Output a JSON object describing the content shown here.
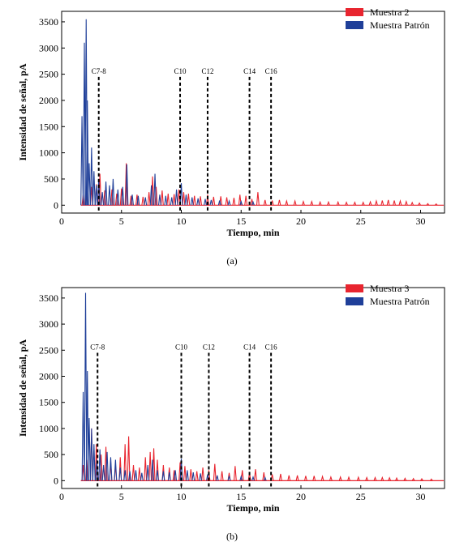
{
  "colors": {
    "sample": "#e8252f",
    "pattern": "#1f3f99",
    "axis": "#000000",
    "marker": "#000000"
  },
  "chart_data": [
    {
      "type": "line",
      "caption": "(a)",
      "xlabel": "Tiempo, min",
      "ylabel": "Intensidad de señal, pA",
      "xlim": [
        0,
        32
      ],
      "ylim": [
        -150,
        3700
      ],
      "xticks": [
        0,
        5,
        10,
        15,
        20,
        25,
        30
      ],
      "yticks": [
        0,
        500,
        1000,
        1500,
        2000,
        2500,
        3000,
        3500
      ],
      "legend_position": "top-right",
      "series": [
        {
          "name": "Muestra 2",
          "color": "#e8252f",
          "x": [
            1.8,
            2.1,
            2.5,
            2.9,
            3.2,
            3.6,
            4.2,
            4.6,
            5.0,
            5.4,
            5.8,
            6.3,
            6.8,
            7.3,
            7.6,
            7.9,
            8.4,
            8.9,
            9.4,
            9.8,
            10.2,
            10.6,
            11.1,
            11.6,
            12.2,
            12.7,
            13.3,
            13.8,
            14.4,
            14.9,
            15.4,
            15.9,
            16.4,
            17.0,
            17.6,
            18.2,
            18.8,
            19.5,
            20.2,
            20.9,
            21.6,
            22.3,
            23.1,
            23.8,
            24.5,
            25.2,
            25.8,
            26.3,
            26.8,
            27.3,
            27.8,
            28.3,
            28.8,
            29.3,
            29.9,
            30.6,
            31.3
          ],
          "y": [
            200,
            180,
            350,
            400,
            600,
            280,
            300,
            220,
            320,
            800,
            180,
            200,
            160,
            250,
            550,
            350,
            280,
            220,
            210,
            300,
            250,
            220,
            180,
            170,
            200,
            160,
            170,
            150,
            140,
            200,
            180,
            120,
            250,
            100,
            90,
            100,
            80,
            80,
            70,
            70,
            60,
            60,
            60,
            55,
            55,
            55,
            65,
            80,
            90,
            100,
            90,
            80,
            70,
            50,
            40,
            30,
            25
          ]
        },
        {
          "name": "Muestra Patrón",
          "color": "#1f3f99",
          "x": [
            1.7,
            1.9,
            2.05,
            2.15,
            2.3,
            2.5,
            2.7,
            2.9,
            3.1,
            3.4,
            3.7,
            4.0,
            4.3,
            4.7,
            5.1,
            5.45,
            5.9,
            6.4,
            7.0,
            7.5,
            7.8,
            8.2,
            8.7,
            9.2,
            9.6,
            10.0,
            10.4,
            10.9,
            11.4,
            12.0,
            12.5,
            13.2,
            14.0,
            15.0,
            16.0
          ],
          "y": [
            1700,
            3100,
            3550,
            2000,
            800,
            1100,
            650,
            380,
            500,
            250,
            450,
            380,
            500,
            300,
            350,
            780,
            200,
            180,
            150,
            380,
            600,
            200,
            180,
            150,
            300,
            420,
            200,
            150,
            130,
            120,
            100,
            90,
            80,
            70,
            60
          ]
        }
      ],
      "markers": [
        {
          "label": "C7-8",
          "x": 3.1
        },
        {
          "label": "C10",
          "x": 9.9
        },
        {
          "label": "C12",
          "x": 12.2
        },
        {
          "label": "C14",
          "x": 15.7
        },
        {
          "label": "C16",
          "x": 17.5
        }
      ]
    },
    {
      "type": "line",
      "caption": "(b)",
      "xlabel": "Tiempo, min",
      "ylabel": "Intensidad de señal, pA",
      "xlim": [
        0,
        32
      ],
      "ylim": [
        -150,
        3700
      ],
      "xticks": [
        0,
        5,
        10,
        15,
        20,
        25,
        30
      ],
      "yticks": [
        0,
        500,
        1000,
        1500,
        2000,
        2500,
        3000,
        3500
      ],
      "legend_position": "top-right",
      "series": [
        {
          "name": "Muestra 3",
          "color": "#e8252f",
          "x": [
            1.8,
            2.1,
            2.5,
            2.9,
            3.3,
            3.7,
            4.1,
            4.5,
            4.9,
            5.3,
            5.6,
            6.0,
            6.5,
            7.0,
            7.4,
            7.7,
            8.0,
            8.5,
            9.0,
            9.4,
            9.9,
            10.3,
            10.8,
            11.3,
            11.8,
            12.3,
            12.8,
            13.4,
            14.0,
            14.5,
            15.1,
            15.7,
            16.2,
            16.9,
            17.6,
            18.3,
            19.0,
            19.7,
            20.4,
            21.1,
            21.8,
            22.5,
            23.3,
            24.0,
            24.8,
            25.5,
            26.2,
            26.8,
            27.4,
            28.0,
            28.7,
            29.4,
            30.1,
            30.9
          ],
          "y": [
            300,
            400,
            1000,
            700,
            500,
            650,
            350,
            300,
            450,
            700,
            850,
            300,
            250,
            450,
            550,
            620,
            400,
            300,
            250,
            200,
            350,
            280,
            220,
            180,
            250,
            200,
            320,
            180,
            150,
            280,
            200,
            150,
            220,
            160,
            120,
            130,
            100,
            100,
            90,
            90,
            80,
            70,
            70,
            65,
            65,
            60,
            60,
            60,
            55,
            50,
            45,
            40,
            35,
            30
          ]
        },
        {
          "name": "Muestra Patrón",
          "color": "#1f3f99",
          "x": [
            1.8,
            2.0,
            2.15,
            2.3,
            2.5,
            2.7,
            2.95,
            3.2,
            3.5,
            3.8,
            4.1,
            4.5,
            4.9,
            5.3,
            5.7,
            6.2,
            6.7,
            7.2,
            7.6,
            8.0,
            8.5,
            9.0,
            9.5,
            10.0,
            10.5,
            11.0,
            11.6,
            12.2,
            13.0,
            14.0,
            15.0,
            16.0,
            17.0
          ],
          "y": [
            1700,
            3600,
            2100,
            1200,
            1000,
            700,
            400,
            600,
            300,
            550,
            450,
            400,
            250,
            200,
            180,
            200,
            150,
            300,
            400,
            200,
            180,
            160,
            200,
            420,
            200,
            160,
            140,
            120,
            100,
            90,
            80,
            70,
            60
          ]
        }
      ],
      "markers": [
        {
          "label": "C7-8",
          "x": 3.0
        },
        {
          "label": "C10",
          "x": 10.0
        },
        {
          "label": "C12",
          "x": 12.3
        },
        {
          "label": "C14",
          "x": 15.7
        },
        {
          "label": "C16",
          "x": 17.5
        }
      ]
    }
  ]
}
